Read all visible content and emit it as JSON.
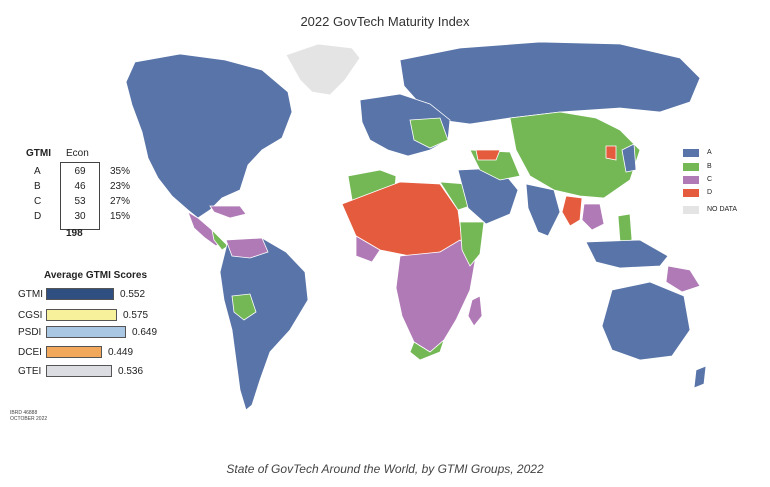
{
  "title": "2022 GovTech Maturity Index",
  "caption": "State of GovTech Around the World, by GTMI Groups, 2022",
  "colors": {
    "A": "#5874a8",
    "B": "#74b855",
    "C": "#b07ab6",
    "D": "#e45b3d",
    "no_data": "#e4e4e4",
    "ocean": "#ffffff"
  },
  "legend": [
    {
      "key": "A",
      "label": "A"
    },
    {
      "key": "B",
      "label": "B"
    },
    {
      "key": "C",
      "label": "C"
    },
    {
      "key": "D",
      "label": "D"
    },
    {
      "key": "no_data",
      "label": "NO DATA"
    }
  ],
  "gtmi_table": {
    "header_gtmi": "GTMI",
    "header_econ": "Econ",
    "rows": [
      {
        "group": "A",
        "econ": "69",
        "pct": "35%"
      },
      {
        "group": "B",
        "econ": "46",
        "pct": "23%"
      },
      {
        "group": "C",
        "econ": "53",
        "pct": "27%"
      },
      {
        "group": "D",
        "econ": "30",
        "pct": "15%"
      }
    ],
    "total": "198"
  },
  "average_scores": {
    "title": "Average GTMI Scores",
    "items": [
      {
        "label": "GTMI",
        "value": "0.552",
        "score": 0.552,
        "color": "#2f4f80"
      },
      {
        "label": "CGSI",
        "value": "0.575",
        "score": 0.575,
        "color": "#f6f19a"
      },
      {
        "label": "PSDI",
        "value": "0.649",
        "score": 0.649,
        "color": "#a9c6e2"
      },
      {
        "label": "DCEI",
        "value": "0.449",
        "score": 0.449,
        "color": "#f2a85a"
      },
      {
        "label": "GTEI",
        "value": "0.536",
        "score": 0.536,
        "color": "#dcdde3"
      }
    ]
  },
  "map_id": "IBRD 46888",
  "map_date": "OCTOBER 2022"
}
